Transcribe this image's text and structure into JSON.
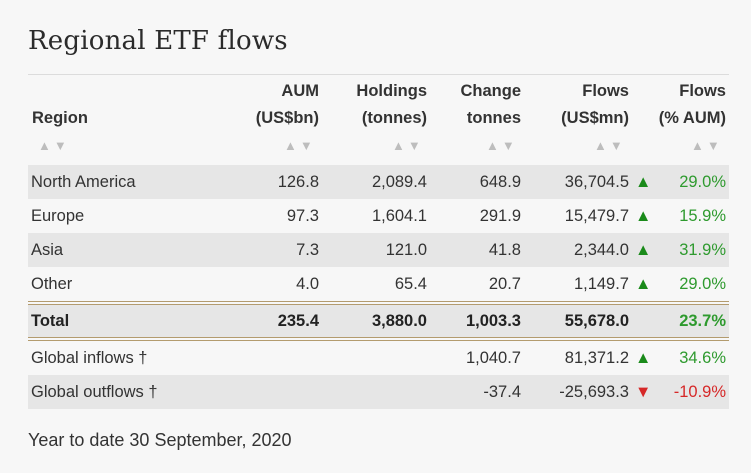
{
  "title": "Regional ETF flows",
  "columns": {
    "region": "Region",
    "aum": [
      "AUM",
      "(US$bn)"
    ],
    "holdings": [
      "Holdings",
      "(tonnes)"
    ],
    "change": [
      "Change",
      "tonnes"
    ],
    "flows_usd": [
      "Flows",
      "(US$mn)"
    ],
    "flows_pct": [
      "Flows",
      "(% AUM)"
    ]
  },
  "sort_glyph": "▲▼",
  "rows": [
    {
      "region": "North America",
      "aum": "126.8",
      "holdings": "2,089.4",
      "change": "648.9",
      "flows": "36,704.5",
      "dir": "▲",
      "pct": "29.0%"
    },
    {
      "region": "Europe",
      "aum": "97.3",
      "holdings": "1,604.1",
      "change": "291.9",
      "flows": "15,479.7",
      "dir": "▲",
      "pct": "15.9%"
    },
    {
      "region": "Asia",
      "aum": "7.3",
      "holdings": "121.0",
      "change": "41.8",
      "flows": "2,344.0",
      "dir": "▲",
      "pct": "31.9%"
    },
    {
      "region": "Other",
      "aum": "4.0",
      "holdings": "65.4",
      "change": "20.7",
      "flows": "1,149.7",
      "dir": "▲",
      "pct": "29.0%"
    }
  ],
  "total": {
    "region": "Total",
    "aum": "235.4",
    "holdings": "3,880.0",
    "change": "1,003.3",
    "flows": "55,678.0",
    "pct": "23.7%"
  },
  "global": [
    {
      "region": "Global inflows †",
      "change": "1,040.7",
      "flows": "81,371.2",
      "dir": "▲",
      "pct": "34.6%"
    },
    {
      "region": "Global outflows †",
      "change": "-37.4",
      "flows": "-25,693.3",
      "dir": "▼",
      "pct": "-10.9%"
    }
  ],
  "footnote": "Year to date 30 September, 2020",
  "colors": {
    "positive": "#2e9a2e",
    "negative": "#d62828",
    "arrow_up": "#1a8a1a"
  }
}
